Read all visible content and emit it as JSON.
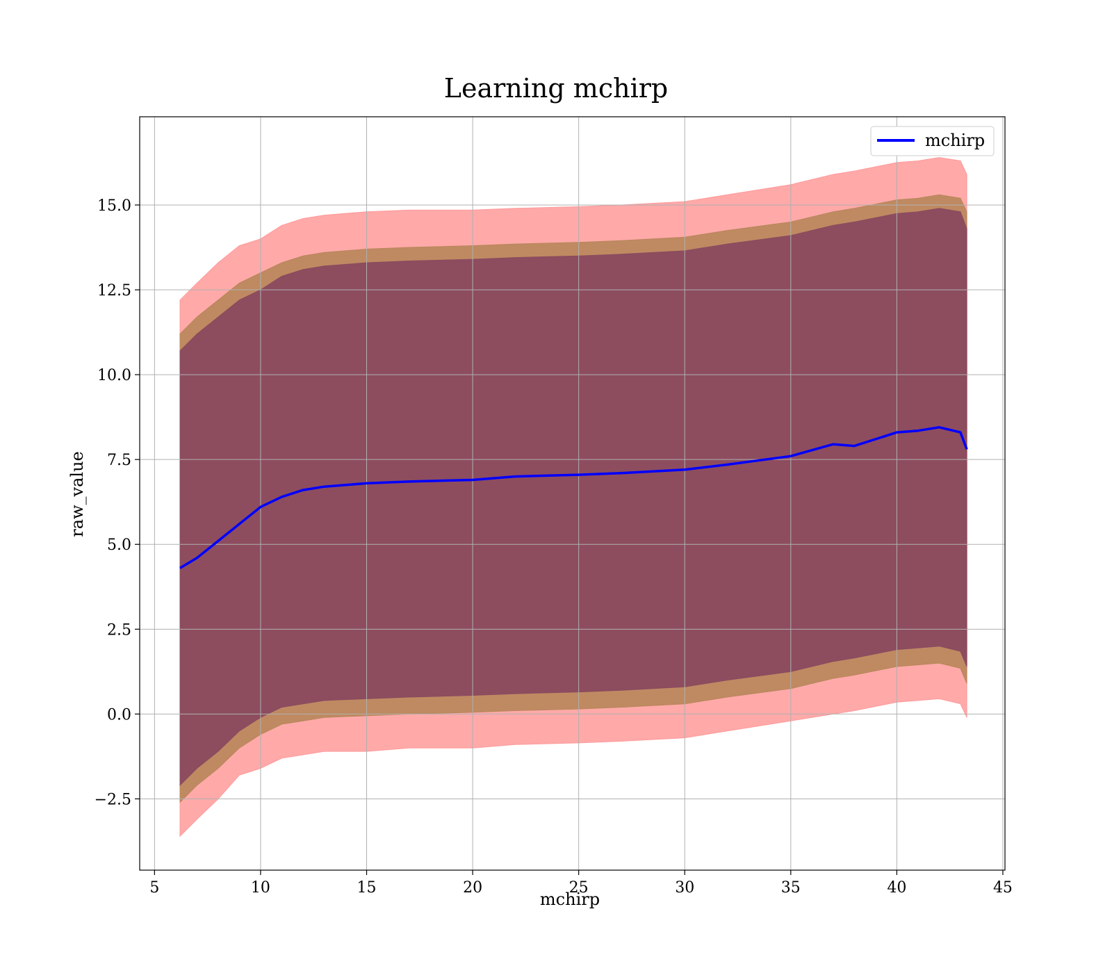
{
  "chart_data": {
    "type": "line",
    "title": "Learning mchirp",
    "xlabel": "mchirp",
    "ylabel": "raw_value",
    "xlim": [
      4.3,
      45.1
    ],
    "ylim": [
      -4.6,
      17.6
    ],
    "xticks": [
      5,
      10,
      15,
      20,
      25,
      30,
      35,
      40,
      45
    ],
    "xtick_labels": [
      "5",
      "10",
      "15",
      "20",
      "25",
      "30",
      "35",
      "40",
      "45"
    ],
    "yticks": [
      -2.5,
      0.0,
      2.5,
      5.0,
      7.5,
      10.0,
      12.5,
      15.0
    ],
    "ytick_labels": [
      "−2.5",
      "0.0",
      "2.5",
      "5.0",
      "7.5",
      "10.0",
      "12.5",
      "15.0"
    ],
    "grid": true,
    "legend_position": "top-right",
    "colors": {
      "line": "#0000ff",
      "band_outer": "#ff9a9a",
      "band_middle": "#b8865a",
      "band_inner": "#8a4a5f"
    },
    "series": [
      {
        "name": "mchirp",
        "x": [
          6.2,
          7,
          8,
          9,
          10,
          11,
          12,
          13,
          15,
          17,
          20,
          22,
          25,
          27,
          30,
          32,
          35,
          37,
          38,
          40,
          41,
          42,
          43,
          43.3
        ],
        "y": [
          4.3,
          4.6,
          5.1,
          5.6,
          6.1,
          6.4,
          6.6,
          6.7,
          6.8,
          6.85,
          6.9,
          7.0,
          7.05,
          7.1,
          7.2,
          7.35,
          7.6,
          7.95,
          7.9,
          8.3,
          8.35,
          8.45,
          8.3,
          7.8
        ]
      }
    ],
    "bands": [
      {
        "level": "outer",
        "x": [
          6.2,
          7,
          8,
          9,
          10,
          11,
          12,
          13,
          15,
          17,
          20,
          22,
          25,
          27,
          30,
          32,
          35,
          37,
          38,
          40,
          41,
          42,
          43,
          43.3
        ],
        "upper": [
          12.2,
          12.7,
          13.3,
          13.8,
          14.0,
          14.4,
          14.6,
          14.7,
          14.8,
          14.85,
          14.85,
          14.9,
          14.95,
          15.0,
          15.1,
          15.3,
          15.6,
          15.9,
          16.0,
          16.25,
          16.3,
          16.4,
          16.3,
          15.9
        ],
        "lower": [
          -3.6,
          -3.1,
          -2.5,
          -1.8,
          -1.6,
          -1.3,
          -1.2,
          -1.1,
          -1.1,
          -1.0,
          -1.0,
          -0.9,
          -0.85,
          -0.8,
          -0.7,
          -0.5,
          -0.2,
          0.0,
          0.1,
          0.35,
          0.4,
          0.45,
          0.3,
          -0.1
        ]
      },
      {
        "level": "middle",
        "x": [
          6.2,
          7,
          8,
          9,
          10,
          11,
          12,
          13,
          15,
          17,
          20,
          22,
          25,
          27,
          30,
          32,
          35,
          37,
          38,
          40,
          41,
          42,
          43,
          43.3
        ],
        "upper": [
          11.2,
          11.7,
          12.2,
          12.7,
          13.0,
          13.3,
          13.5,
          13.6,
          13.7,
          13.75,
          13.8,
          13.85,
          13.9,
          13.95,
          14.05,
          14.25,
          14.5,
          14.8,
          14.9,
          15.15,
          15.2,
          15.3,
          15.2,
          14.8
        ],
        "lower": [
          -2.6,
          -2.1,
          -1.6,
          -1.0,
          -0.6,
          -0.3,
          -0.2,
          -0.1,
          -0.05,
          0.0,
          0.05,
          0.1,
          0.15,
          0.2,
          0.3,
          0.5,
          0.75,
          1.05,
          1.15,
          1.4,
          1.45,
          1.5,
          1.35,
          0.9
        ]
      },
      {
        "level": "inner",
        "x": [
          6.2,
          7,
          8,
          9,
          10,
          11,
          12,
          13,
          15,
          17,
          20,
          22,
          25,
          27,
          30,
          32,
          35,
          37,
          38,
          40,
          41,
          42,
          43,
          43.3
        ],
        "upper": [
          10.7,
          11.2,
          11.7,
          12.2,
          12.5,
          12.9,
          13.1,
          13.2,
          13.3,
          13.35,
          13.4,
          13.45,
          13.5,
          13.55,
          13.65,
          13.85,
          14.1,
          14.4,
          14.5,
          14.75,
          14.8,
          14.9,
          14.8,
          14.3
        ],
        "lower": [
          -2.1,
          -1.6,
          -1.1,
          -0.5,
          -0.1,
          0.2,
          0.3,
          0.4,
          0.45,
          0.5,
          0.55,
          0.6,
          0.65,
          0.7,
          0.8,
          1.0,
          1.25,
          1.55,
          1.65,
          1.9,
          1.95,
          2.0,
          1.85,
          1.4
        ]
      }
    ]
  }
}
